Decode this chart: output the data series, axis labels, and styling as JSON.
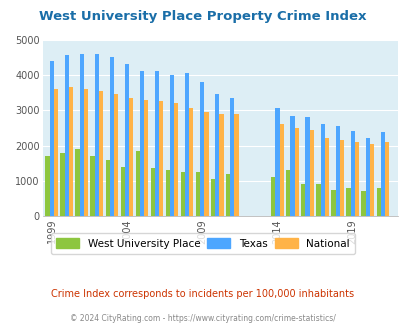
{
  "title": "West University Place Property Crime Index",
  "years": [
    1999,
    2000,
    2001,
    2002,
    2003,
    2004,
    2005,
    2006,
    2007,
    2008,
    2009,
    2010,
    2011,
    2014,
    2015,
    2016,
    2017,
    2018,
    2019,
    2020,
    2021
  ],
  "west_univ": [
    1700,
    1800,
    1900,
    1700,
    1600,
    1400,
    1850,
    1350,
    1300,
    1250,
    1250,
    1050,
    1200,
    1100,
    1300,
    900,
    900,
    750,
    800,
    700,
    800
  ],
  "texas": [
    4400,
    4550,
    4600,
    4600,
    4500,
    4300,
    4100,
    4100,
    4000,
    4050,
    3800,
    3450,
    3350,
    3050,
    2850,
    2800,
    2600,
    2550,
    2400,
    2200,
    2380
  ],
  "national": [
    3600,
    3650,
    3600,
    3550,
    3450,
    3350,
    3300,
    3250,
    3200,
    3050,
    2950,
    2900,
    2900,
    2600,
    2500,
    2450,
    2200,
    2150,
    2100,
    2050,
    2100
  ],
  "bar_width": 0.28,
  "green_color": "#8dc63f",
  "blue_color": "#4da6ff",
  "orange_color": "#ffb347",
  "bg_color": "#ddeef5",
  "ylim": [
    0,
    5000
  ],
  "yticks": [
    0,
    1000,
    2000,
    3000,
    4000,
    5000
  ],
  "xtick_years": [
    1999,
    2004,
    2009,
    2014,
    2019
  ],
  "legend_labels": [
    "West University Place",
    "Texas",
    "National"
  ],
  "subtitle": "Crime Index corresponds to incidents per 100,000 inhabitants",
  "footer": "© 2024 CityRating.com - https://www.cityrating.com/crime-statistics/",
  "title_color": "#1a6ea8",
  "subtitle_color": "#cc3300",
  "footer_color": "#888888"
}
